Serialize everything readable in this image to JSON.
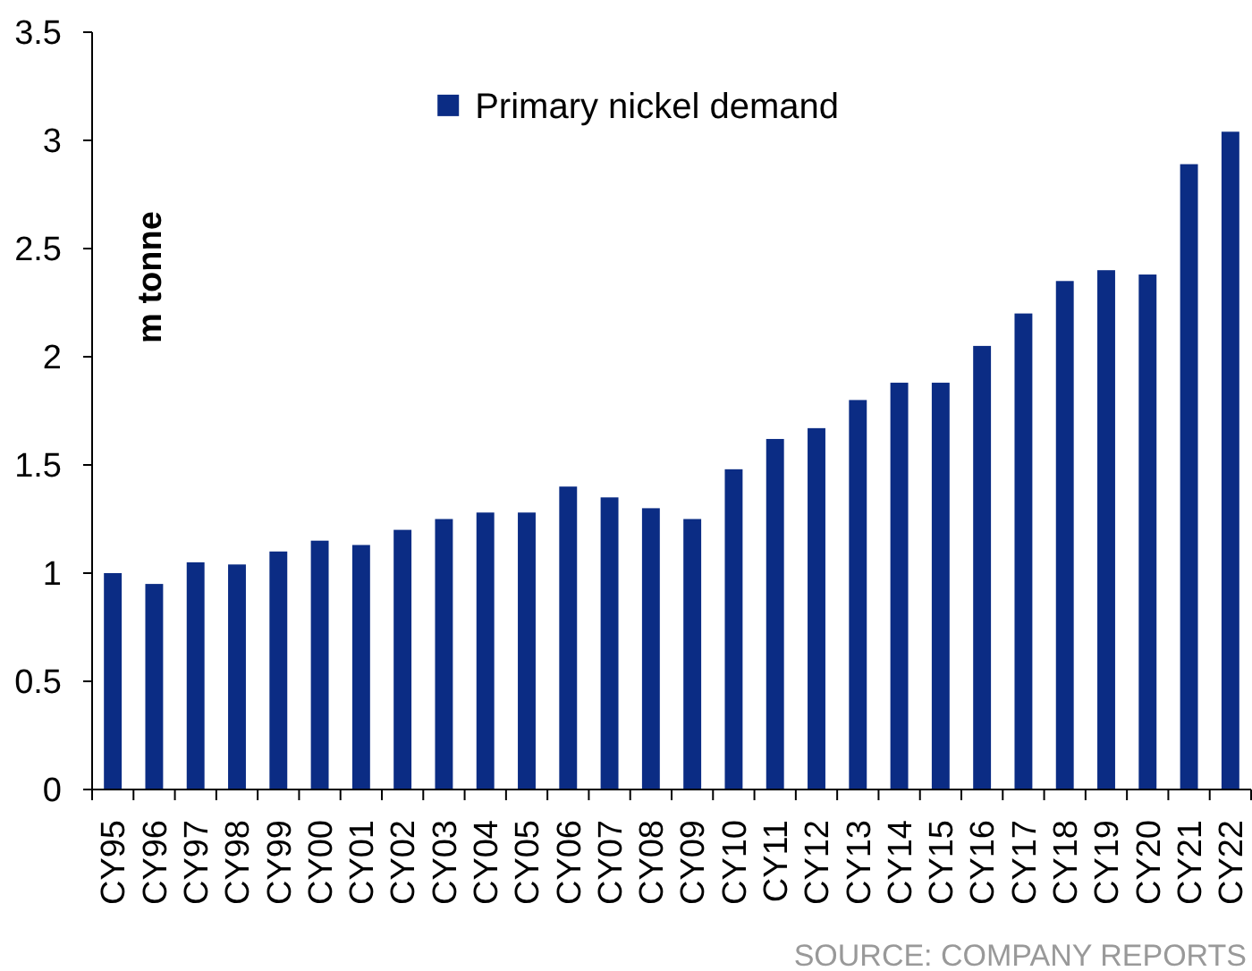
{
  "chart_data": {
    "type": "bar",
    "ylabel": "m tonne",
    "categories": [
      "CY95",
      "CY96",
      "CY97",
      "CY98",
      "CY99",
      "CY00",
      "CY01",
      "CY02",
      "CY03",
      "CY04",
      "CY05",
      "CY06",
      "CY07",
      "CY08",
      "CY09",
      "CY10",
      "CY11",
      "CY12",
      "CY13",
      "CY14",
      "CY15",
      "CY16",
      "CY17",
      "CY18",
      "CY19",
      "CY20",
      "CY21",
      "CY22"
    ],
    "series": [
      {
        "name": "Primary nickel demand",
        "color": "#0b2c84",
        "values": [
          1.0,
          0.95,
          1.05,
          1.04,
          1.1,
          1.15,
          1.13,
          1.2,
          1.25,
          1.28,
          1.28,
          1.4,
          1.35,
          1.3,
          1.25,
          1.48,
          1.62,
          1.67,
          1.8,
          1.88,
          1.88,
          2.05,
          2.2,
          2.35,
          2.4,
          2.38,
          2.89,
          3.04
        ]
      }
    ],
    "ylim": [
      0,
      3.5
    ],
    "yticks": [
      0,
      0.5,
      1,
      1.5,
      2,
      2.5,
      3,
      3.5
    ],
    "legend": "top",
    "annotations": [
      "SOURCE: COMPANY REPORTS"
    ]
  }
}
